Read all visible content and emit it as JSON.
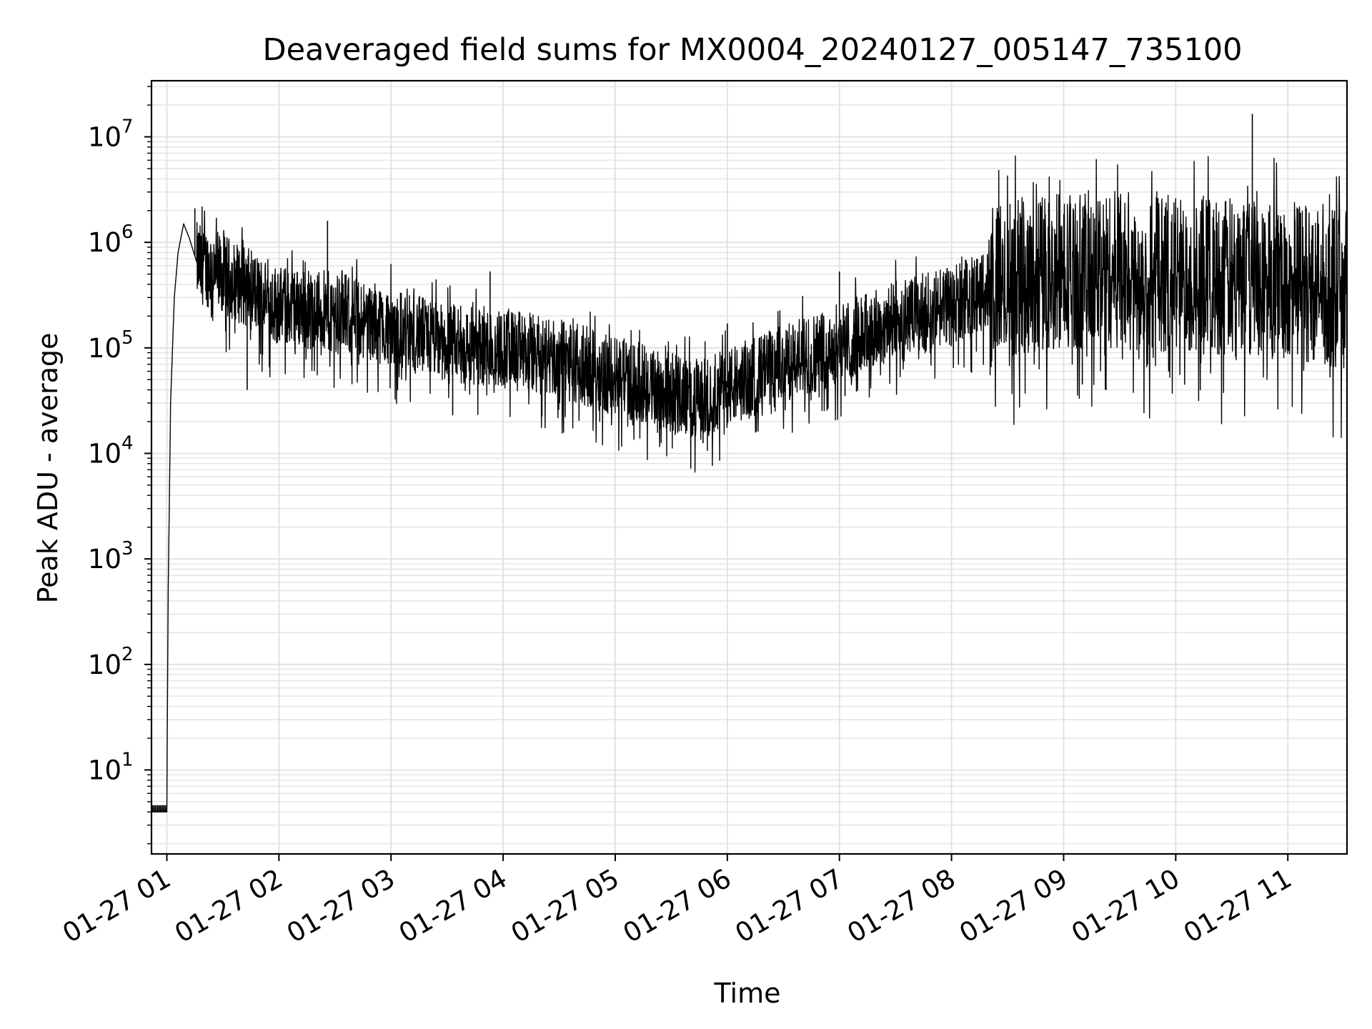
{
  "chart_data": {
    "type": "line",
    "title": "Deaveraged field sums for MX0004_20240127_005147_735100",
    "xlabel": "Time",
    "ylabel": "Peak ADU - average",
    "yscale": "log",
    "ylim": [
      1.6,
      34000000.0
    ],
    "xlim": [
      "01-27 00:51:47",
      "01-27 11:31:40"
    ],
    "grid": true,
    "legend": "none",
    "x_ticks": [
      {
        "time": "01-27 01:00",
        "label": "01-27 01"
      },
      {
        "time": "01-27 02:00",
        "label": "01-27 02"
      },
      {
        "time": "01-27 03:00",
        "label": "01-27 03"
      },
      {
        "time": "01-27 04:00",
        "label": "01-27 04"
      },
      {
        "time": "01-27 05:00",
        "label": "01-27 05"
      },
      {
        "time": "01-27 06:00",
        "label": "01-27 06"
      },
      {
        "time": "01-27 07:00",
        "label": "01-27 07"
      },
      {
        "time": "01-27 08:00",
        "label": "01-27 08"
      },
      {
        "time": "01-27 09:00",
        "label": "01-27 09"
      },
      {
        "time": "01-27 10:00",
        "label": "01-27 10"
      },
      {
        "time": "01-27 11:00",
        "label": "01-27 11"
      }
    ],
    "y_ticks": [
      {
        "value": 10,
        "base": "10",
        "exp": "1"
      },
      {
        "value": 100,
        "base": "10",
        "exp": "2"
      },
      {
        "value": 1000,
        "base": "10",
        "exp": "3"
      },
      {
        "value": 10000,
        "base": "10",
        "exp": "4"
      },
      {
        "value": 100000,
        "base": "10",
        "exp": "5"
      },
      {
        "value": 1000000,
        "base": "10",
        "exp": "6"
      },
      {
        "value": 10000000,
        "base": "10",
        "exp": "7"
      }
    ],
    "series": [
      {
        "color": "#000000",
        "points": [
          {
            "time": "01-27 00:51:47",
            "value": 4
          },
          {
            "time": "01-27 01:00:00",
            "value": 4
          },
          {
            "time": "01-27 01:00:40",
            "value": 400
          },
          {
            "time": "01-27 01:02:00",
            "value": 30000
          },
          {
            "time": "01-27 01:04:00",
            "value": 300000
          },
          {
            "time": "01-27 01:06:00",
            "value": 800000
          },
          {
            "time": "01-27 01:09:00",
            "value": 1500000
          },
          {
            "time": "01-27 01:12:00",
            "value": 1100000
          },
          {
            "time": "01-27 01:16:00",
            "value": 650000
          },
          {
            "time": "01-27 01:30:00",
            "value": 500000
          },
          {
            "time": "01-27 02:00:00",
            "value": 250000
          },
          {
            "time": "01-27 02:30:00",
            "value": 220000
          },
          {
            "time": "01-27 03:00:00",
            "value": 160000
          },
          {
            "time": "01-27 03:30:00",
            "value": 110000
          },
          {
            "time": "01-27 04:00:00",
            "value": 100000
          },
          {
            "time": "01-27 04:30:00",
            "value": 80000
          },
          {
            "time": "01-27 05:00:00",
            "value": 55000
          },
          {
            "time": "01-27 05:30:00",
            "value": 38000
          },
          {
            "time": "01-27 05:45:00",
            "value": 32000
          },
          {
            "time": "01-27 06:00:00",
            "value": 42000
          },
          {
            "time": "01-27 06:30:00",
            "value": 70000
          },
          {
            "time": "01-27 07:00:00",
            "value": 110000
          },
          {
            "time": "01-27 07:30:00",
            "value": 180000
          },
          {
            "time": "01-27 08:00:00",
            "value": 250000
          },
          {
            "time": "01-27 08:30:00",
            "value": 450000
          },
          {
            "time": "01-27 09:00:00",
            "value": 550000
          },
          {
            "time": "01-27 09:30:00",
            "value": 550000
          },
          {
            "time": "01-27 10:00:00",
            "value": 500000
          },
          {
            "time": "01-27 10:30:00",
            "value": 480000
          },
          {
            "time": "01-27 11:00:00",
            "value": 450000
          },
          {
            "time": "01-27 11:31:40",
            "value": 350000
          }
        ],
        "spikes": [
          {
            "time": "01-27 01:15:00",
            "value": 2100000
          },
          {
            "time": "01-27 02:26:00",
            "value": 1600000
          },
          {
            "time": "01-27 03:53:00",
            "value": 530000
          },
          {
            "time": "01-27 06:00:00",
            "value": 170000
          },
          {
            "time": "01-27 07:00:00",
            "value": 530000
          },
          {
            "time": "01-27 10:41:00",
            "value": 16500000
          },
          {
            "time": "01-27 10:42:00",
            "value": 1700000
          }
        ],
        "dips": [
          {
            "time": "01-27 01:43:00",
            "value": 40000
          },
          {
            "time": "01-27 03:33:00",
            "value": 23000
          },
          {
            "time": "01-27 05:47:00",
            "value": 12500
          },
          {
            "time": "01-27 07:03:00",
            "value": 35000
          },
          {
            "time": "01-27 09:10:00",
            "value": 45000
          }
        ]
      }
    ]
  }
}
